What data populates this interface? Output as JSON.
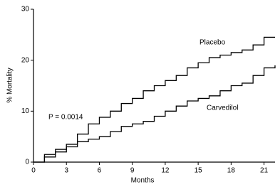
{
  "chart_data": {
    "type": "line",
    "drawstyle": "steps-post",
    "xlabel": "Months",
    "ylabel": "% Mortality",
    "annotations": [
      "P = 0.0014"
    ],
    "x": [
      0,
      1,
      2,
      3,
      4,
      5,
      6,
      7,
      8,
      9,
      10,
      11,
      12,
      13,
      14,
      15,
      16,
      17,
      18,
      19,
      20,
      21,
      22
    ],
    "series": [
      {
        "name": "Placebo",
        "color": "#000000",
        "values": [
          0,
          1,
          2,
          3.5,
          5.5,
          7.5,
          8.8,
          10,
          11.5,
          12.5,
          14,
          15,
          16,
          17,
          18.5,
          19.5,
          20.5,
          21,
          21.5,
          22,
          23,
          24.5,
          24.5
        ]
      },
      {
        "name": "Carvedilol",
        "color": "#000000",
        "values": [
          0,
          1.5,
          2.5,
          3,
          4,
          4.5,
          5,
          6,
          7,
          7.5,
          8,
          9,
          10,
          11,
          12,
          12.5,
          13,
          14,
          15,
          15.5,
          17,
          18.5,
          19
        ]
      }
    ],
    "xlim": [
      0,
      22
    ],
    "ylim": [
      0,
      30
    ],
    "xticks": [
      0,
      3,
      6,
      9,
      12,
      15,
      18,
      21
    ],
    "yticks": [
      0,
      10,
      20,
      30
    ],
    "grid": false
  }
}
